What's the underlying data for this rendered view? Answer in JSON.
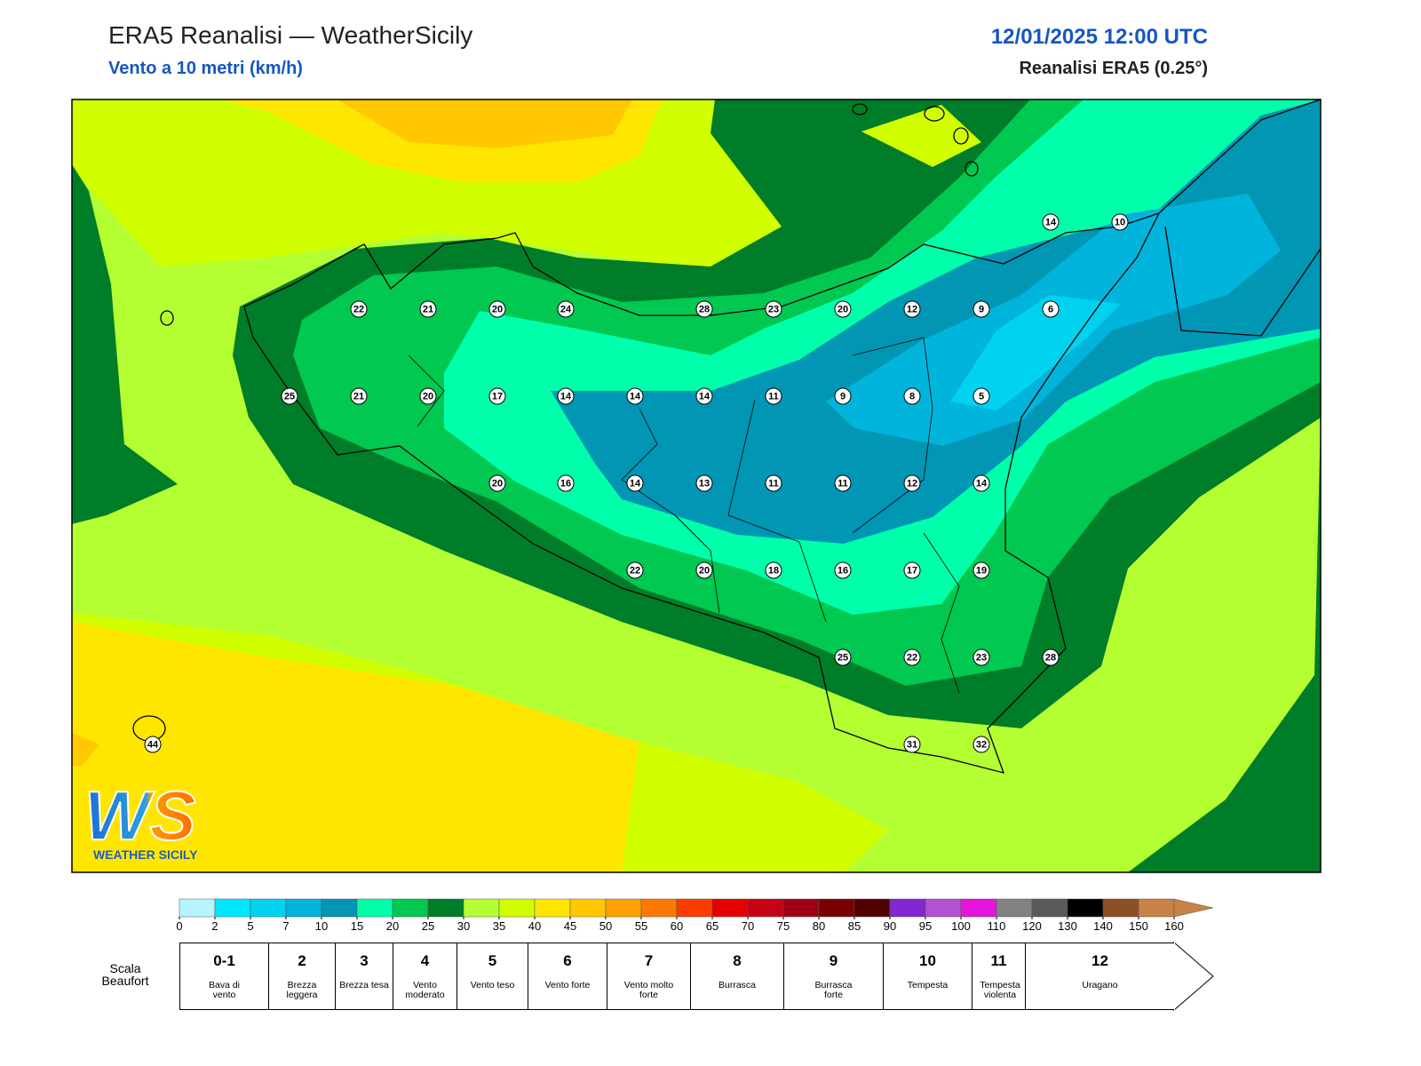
{
  "header": {
    "title": "ERA5 Reanalisi — WeatherSicily",
    "subtitle": "Vento a 10 metri (km/h)",
    "datetime": "12/01/2025 12:00 UTC",
    "source": "Reanalisi ERA5 (0.25°)"
  },
  "stations": [
    14,
    10,
    22,
    21,
    20,
    24,
    28,
    23,
    20,
    12,
    9,
    6,
    25,
    21,
    20,
    17,
    14,
    14,
    14,
    11,
    9,
    8,
    5,
    20,
    16,
    14,
    13,
    11,
    11,
    12,
    14,
    22,
    20,
    18,
    16,
    17,
    19,
    25,
    22,
    23,
    28,
    31,
    32,
    44
  ],
  "colorbar": {
    "ticks": [
      0,
      2,
      5,
      7,
      10,
      15,
      20,
      25,
      30,
      35,
      40,
      45,
      50,
      55,
      60,
      65,
      70,
      75,
      80,
      85,
      90,
      95,
      100,
      110,
      120,
      130,
      140,
      150,
      160
    ],
    "colors": [
      "#b4f5ff",
      "#00e6ff",
      "#00d2f0",
      "#00b4dc",
      "#0096b4",
      "#00ffaa",
      "#00c850",
      "#007d28",
      "#b4ff32",
      "#d2ff00",
      "#ffe600",
      "#ffc800",
      "#ffa000",
      "#ff7800",
      "#ff3c00",
      "#e60000",
      "#c80014",
      "#a00014",
      "#780000",
      "#500000",
      "#8228d2",
      "#b450d2",
      "#e614dc",
      "#828282",
      "#5a5a5a",
      "#000000",
      "#8c5028",
      "#c88246"
    ]
  },
  "beaufort": {
    "title": "Scala Beaufort",
    "levels": [
      {
        "force": "0-1",
        "label": "Bava di vento"
      },
      {
        "force": "2",
        "label": "Brezza leggera"
      },
      {
        "force": "3",
        "label": "Brezza tesa"
      },
      {
        "force": "4",
        "label": "Vento moderato"
      },
      {
        "force": "5",
        "label": "Vento teso"
      },
      {
        "force": "6",
        "label": "Vento forte"
      },
      {
        "force": "7",
        "label": "Vento molto forte"
      },
      {
        "force": "8",
        "label": "Burrasca"
      },
      {
        "force": "9",
        "label": "Burrasca forte"
      },
      {
        "force": "10",
        "label": "Tempesta"
      },
      {
        "force": "11",
        "label": "Tempesta violenta"
      },
      {
        "force": "12",
        "label": "Uragano"
      }
    ]
  },
  "logo": {
    "letters": "WS",
    "name": "WEATHER SICILY"
  }
}
